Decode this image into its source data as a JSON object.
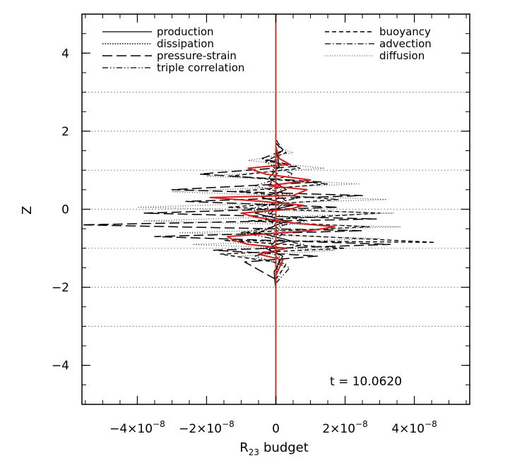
{
  "chart_data": {
    "type": "line",
    "xlabel": "budget",
    "xlabel_symbol": "R",
    "xlabel_subscript": "23",
    "ylabel": "Z",
    "xlim": [
      -5.6e-08,
      5.6e-08
    ],
    "ylim": [
      -5,
      5
    ],
    "x_ticks": [
      {
        "value": -4e-08,
        "mantissa": "−4×10",
        "exponent": "−8"
      },
      {
        "value": -2e-08,
        "mantissa": "−2×10",
        "exponent": "−8"
      },
      {
        "value": 0,
        "mantissa": "0",
        "exponent": ""
      },
      {
        "value": 2e-08,
        "mantissa": "2×10",
        "exponent": "−8"
      },
      {
        "value": 4e-08,
        "mantissa": "4×10",
        "exponent": "−8"
      }
    ],
    "y_ticks": [
      {
        "value": -4,
        "label": "−4"
      },
      {
        "value": -2,
        "label": "−2"
      },
      {
        "value": 0,
        "label": "0"
      },
      {
        "value": 2,
        "label": "2"
      },
      {
        "value": 4,
        "label": "4"
      }
    ],
    "gridlines_y": [
      -3,
      -2,
      -1,
      0,
      1,
      2,
      3
    ],
    "vertical_line": {
      "x": 0,
      "color": "#c0392b"
    },
    "annotation": "t = 10.0620",
    "legend_placement": "top",
    "series": [
      {
        "name": "production",
        "style": "solid",
        "color": "#000000",
        "points": [
          [
            0,
            -2.1
          ],
          [
            -5e-10,
            -1.6
          ],
          [
            2e-09,
            -1.2
          ],
          [
            -3e-09,
            -1.0
          ],
          [
            4e-09,
            -0.8
          ],
          [
            -5e-09,
            -0.6
          ],
          [
            3e-09,
            -0.3
          ],
          [
            -6e-09,
            -0.1
          ],
          [
            5e-09,
            0.1
          ],
          [
            -4e-09,
            0.3
          ],
          [
            3e-09,
            0.5
          ],
          [
            -2e-09,
            0.8
          ],
          [
            1e-09,
            1.1
          ],
          [
            0,
            1.6
          ],
          [
            0,
            2.0
          ]
        ]
      },
      {
        "name": "dissipation",
        "style": "dotted",
        "color": "#000000",
        "points": [
          [
            0,
            -1.8
          ],
          [
            1e-09,
            -1.2
          ],
          [
            -2e-09,
            -0.8
          ],
          [
            2e-09,
            -0.4
          ],
          [
            -3e-09,
            0.0
          ],
          [
            2e-09,
            0.4
          ],
          [
            -1e-09,
            0.9
          ],
          [
            0,
            1.4
          ]
        ]
      },
      {
        "name": "pressure-strain",
        "style": "longdash",
        "color": "#000000",
        "points": [
          [
            0,
            -1.8
          ],
          [
            -9e-09,
            -1.35
          ],
          [
            1.2e-08,
            -1.2
          ],
          [
            -1.8e-08,
            -1.05
          ],
          [
            3.3e-08,
            -0.9
          ],
          [
            -3.5e-08,
            -0.7
          ],
          [
            2.5e-08,
            -0.55
          ],
          [
            -5.6e-08,
            -0.4
          ],
          [
            2.9e-08,
            -0.25
          ],
          [
            -3.8e-08,
            -0.1
          ],
          [
            1.8e-08,
            0.05
          ],
          [
            -2.6e-08,
            0.2
          ],
          [
            2.5e-08,
            0.35
          ],
          [
            -3e-08,
            0.5
          ],
          [
            1.3e-08,
            0.7
          ],
          [
            -2.2e-08,
            0.9
          ],
          [
            6e-09,
            1.1
          ],
          [
            -4e-09,
            1.3
          ],
          [
            2e-09,
            1.5
          ],
          [
            0,
            1.7
          ]
        ]
      },
      {
        "name": "triple correlation",
        "style": "dashdotdot",
        "color": "#000000",
        "points": [
          [
            0,
            -1.9
          ],
          [
            4e-09,
            -1.5
          ],
          [
            -6e-09,
            -1.2
          ],
          [
            8e-09,
            -0.9
          ],
          [
            -1e-08,
            -0.6
          ],
          [
            9e-09,
            -0.3
          ],
          [
            -8e-09,
            0.0
          ],
          [
            7e-09,
            0.3
          ],
          [
            -6e-09,
            0.6
          ],
          [
            5e-09,
            0.9
          ],
          [
            -3e-09,
            1.2
          ],
          [
            2e-09,
            1.5
          ],
          [
            0,
            1.8
          ]
        ]
      },
      {
        "name": "buoyancy",
        "style": "shortdash",
        "color": "#000000",
        "points": [
          [
            0,
            -1.8
          ],
          [
            3e-09,
            -1.4
          ],
          [
            -1.6e-08,
            -1.15
          ],
          [
            2e-08,
            -1.0
          ],
          [
            -1.5e-08,
            -0.8
          ],
          [
            4.6e-08,
            -0.85
          ],
          [
            -1e-08,
            -0.6
          ],
          [
            2.7e-08,
            -0.45
          ],
          [
            -8e-09,
            -0.3
          ],
          [
            3e-08,
            -0.1
          ],
          [
            -1.4e-08,
            0.05
          ],
          [
            1.8e-08,
            0.25
          ],
          [
            -1.2e-08,
            0.45
          ],
          [
            1.5e-08,
            0.65
          ],
          [
            -1.3e-08,
            0.85
          ],
          [
            7e-09,
            1.05
          ],
          [
            -3e-09,
            1.25
          ],
          [
            3e-09,
            1.45
          ],
          [
            0,
            1.7
          ]
        ]
      },
      {
        "name": "advection",
        "style": "dashdot",
        "color": "#000000",
        "points": [
          [
            0,
            -1.6
          ],
          [
            1e-09,
            -1.3
          ],
          [
            -2e-09,
            -1.0
          ],
          [
            2e-09,
            -0.6
          ],
          [
            -3e-09,
            -0.2
          ],
          [
            3e-09,
            0.2
          ],
          [
            -2e-09,
            0.6
          ],
          [
            1e-09,
            1.0
          ],
          [
            0,
            1.4
          ]
        ]
      },
      {
        "name": "diffusion",
        "style": "finedot",
        "color": "#555555",
        "points": [
          [
            0,
            -1.9
          ],
          [
            3e-09,
            -1.4
          ],
          [
            -1e-08,
            -1.2
          ],
          [
            1.7e-08,
            -1.05
          ],
          [
            -2.4e-08,
            -0.9
          ],
          [
            3e-08,
            -0.75
          ],
          [
            -2.8e-08,
            -0.6
          ],
          [
            3.6e-08,
            -0.45
          ],
          [
            -3.8e-08,
            -0.3
          ],
          [
            3.4e-08,
            -0.1
          ],
          [
            -4e-08,
            0.05
          ],
          [
            3.2e-08,
            0.25
          ],
          [
            -3e-08,
            0.45
          ],
          [
            2.4e-08,
            0.65
          ],
          [
            -2e-08,
            0.85
          ],
          [
            1.4e-08,
            1.05
          ],
          [
            -8e-09,
            1.25
          ],
          [
            5e-09,
            1.45
          ],
          [
            0,
            1.6
          ]
        ]
      },
      {
        "name": "",
        "style": "solid-red",
        "color": "#d02020",
        "points": [
          [
            0,
            -1.7
          ],
          [
            2e-09,
            -1.3
          ],
          [
            -5e-09,
            -1.15
          ],
          [
            3e-09,
            -1.0
          ],
          [
            -8e-09,
            -0.9
          ],
          [
            -1.2e-08,
            -0.8
          ],
          [
            -1.4e-08,
            -0.7
          ],
          [
            2e-09,
            -0.6
          ],
          [
            1e-08,
            -0.55
          ],
          [
            1.7e-08,
            -0.45
          ],
          [
            5e-09,
            -0.35
          ],
          [
            -6e-09,
            -0.2
          ],
          [
            -1e-08,
            -0.1
          ],
          [
            4e-09,
            0.0
          ],
          [
            8e-09,
            0.1
          ],
          [
            -4e-09,
            0.2
          ],
          [
            -1.9e-08,
            0.3
          ],
          [
            5e-09,
            0.35
          ],
          [
            9e-09,
            0.5
          ],
          [
            -2e-09,
            0.6
          ],
          [
            1e-08,
            0.75
          ],
          [
            -3e-09,
            0.9
          ],
          [
            -8e-09,
            1.05
          ],
          [
            4e-09,
            1.15
          ],
          [
            1e-09,
            1.3
          ],
          [
            0,
            1.6
          ]
        ]
      }
    ]
  }
}
